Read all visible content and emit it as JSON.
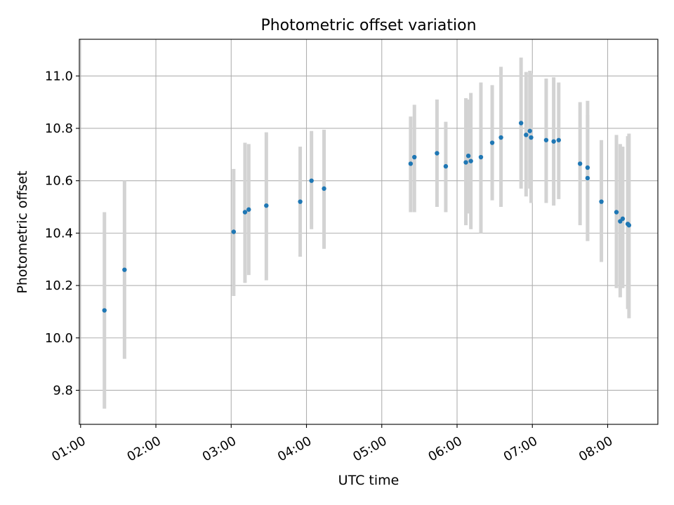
{
  "colors": {
    "point": "#1f77b4",
    "errorbar": "#d3d3d3",
    "grid": "#b0b0b0",
    "axis": "#000000",
    "background": "#ffffff"
  },
  "chart_data": {
    "type": "scatter",
    "title": "Photometric offset variation",
    "xlabel": "UTC time",
    "ylabel": "Photometric offset",
    "xlim": [
      "00:59",
      "08:40"
    ],
    "ylim": [
      9.67,
      11.14
    ],
    "grid": true,
    "legend": "none",
    "x_ticks": [
      "01:00",
      "02:00",
      "03:00",
      "04:00",
      "05:00",
      "06:00",
      "07:00",
      "08:00"
    ],
    "y_ticks": [
      "9.8",
      "10.0",
      "10.2",
      "10.4",
      "10.6",
      "10.8",
      "11.0"
    ],
    "series": [
      {
        "points": [
          {
            "x": "01:19",
            "y": 10.105,
            "lo": 9.73,
            "hi": 10.48
          },
          {
            "x": "01:35",
            "y": 10.26,
            "lo": 9.92,
            "hi": 10.6
          },
          {
            "x": "03:02",
            "y": 10.405,
            "lo": 10.16,
            "hi": 10.645
          },
          {
            "x": "03:11",
            "y": 10.48,
            "lo": 10.21,
            "hi": 10.745
          },
          {
            "x": "03:14",
            "y": 10.49,
            "lo": 10.24,
            "hi": 10.74
          },
          {
            "x": "03:28",
            "y": 10.505,
            "lo": 10.22,
            "hi": 10.785
          },
          {
            "x": "03:55",
            "y": 10.52,
            "lo": 10.31,
            "hi": 10.73
          },
          {
            "x": "04:04",
            "y": 10.6,
            "lo": 10.415,
            "hi": 10.79
          },
          {
            "x": "04:14",
            "y": 10.57,
            "lo": 10.34,
            "hi": 10.795
          },
          {
            "x": "05:23",
            "y": 10.665,
            "lo": 10.48,
            "hi": 10.845
          },
          {
            "x": "05:26",
            "y": 10.69,
            "lo": 10.48,
            "hi": 10.89
          },
          {
            "x": "05:44",
            "y": 10.705,
            "lo": 10.5,
            "hi": 10.91
          },
          {
            "x": "05:51",
            "y": 10.655,
            "lo": 10.48,
            "hi": 10.825
          },
          {
            "x": "06:07",
            "y": 10.67,
            "lo": 10.43,
            "hi": 10.915
          },
          {
            "x": "06:09",
            "y": 10.695,
            "lo": 10.475,
            "hi": 10.91
          },
          {
            "x": "06:11",
            "y": 10.675,
            "lo": 10.415,
            "hi": 10.935
          },
          {
            "x": "06:19",
            "y": 10.69,
            "lo": 10.4,
            "hi": 10.975
          },
          {
            "x": "06:28",
            "y": 10.745,
            "lo": 10.525,
            "hi": 10.965
          },
          {
            "x": "06:35",
            "y": 10.765,
            "lo": 10.5,
            "hi": 11.035
          },
          {
            "x": "06:51",
            "y": 10.82,
            "lo": 10.57,
            "hi": 11.07
          },
          {
            "x": "06:55",
            "y": 10.775,
            "lo": 10.54,
            "hi": 11.015
          },
          {
            "x": "06:58",
            "y": 10.79,
            "lo": 10.57,
            "hi": 11.02
          },
          {
            "x": "06:59",
            "y": 10.765,
            "lo": 10.515,
            "hi": 11.01
          },
          {
            "x": "07:11",
            "y": 10.755,
            "lo": 10.515,
            "hi": 10.99
          },
          {
            "x": "07:17",
            "y": 10.75,
            "lo": 10.505,
            "hi": 10.995
          },
          {
            "x": "07:21",
            "y": 10.755,
            "lo": 10.53,
            "hi": 10.975
          },
          {
            "x": "07:38",
            "y": 10.665,
            "lo": 10.43,
            "hi": 10.9
          },
          {
            "x": "07:44",
            "y": 10.65,
            "lo": 10.37,
            "hi": 10.905
          },
          {
            "x": "07:44",
            "y": 10.61,
            "lo": 10.37,
            "hi": 10.85
          },
          {
            "x": "07:55",
            "y": 10.52,
            "lo": 10.29,
            "hi": 10.755
          },
          {
            "x": "08:07",
            "y": 10.48,
            "lo": 10.19,
            "hi": 10.775
          },
          {
            "x": "08:10",
            "y": 10.445,
            "lo": 10.155,
            "hi": 10.74
          },
          {
            "x": "08:12",
            "y": 10.455,
            "lo": 10.19,
            "hi": 10.73
          },
          {
            "x": "08:16",
            "y": 10.435,
            "lo": 10.11,
            "hi": 10.77
          },
          {
            "x": "08:17",
            "y": 10.43,
            "lo": 10.075,
            "hi": 10.78
          }
        ]
      }
    ]
  }
}
